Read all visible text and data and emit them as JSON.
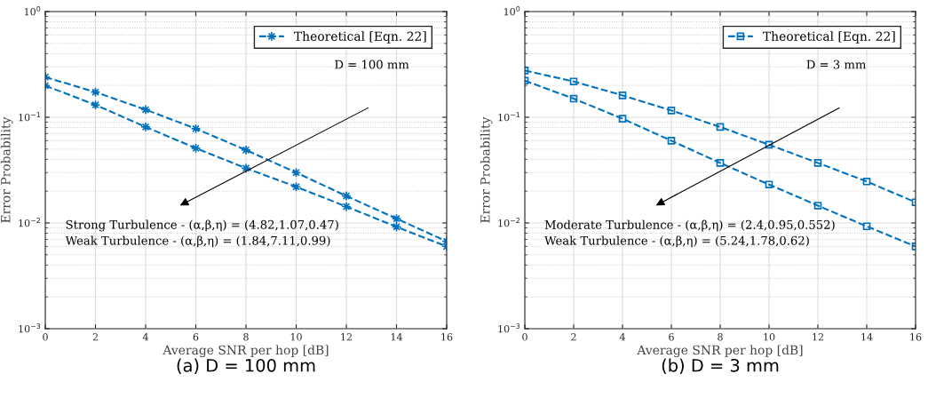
{
  "chart_data": [
    {
      "type": "line",
      "xlabel": "Average SNR per hop [dB]",
      "ylabel": "Error Probability",
      "log": "y",
      "grid": true,
      "legend": "top right",
      "marker": "star",
      "line_style": "dashed",
      "x": [
        0,
        2,
        4,
        6,
        8,
        10,
        12,
        14,
        16
      ],
      "xlim": [
        0,
        16
      ],
      "xticks": [
        0,
        2,
        4,
        6,
        8,
        10,
        12,
        14,
        16
      ],
      "ylim": [
        0.001,
        1
      ],
      "yticks": [
        {
          "value": 0.001,
          "label": "10$^{−3}$"
        },
        {
          "value": 0.01,
          "label": "10$^{−2}$"
        },
        {
          "value": 0.1,
          "label": "10$^{−1}$"
        },
        {
          "value": 1,
          "label": "10$^{0}$"
        }
      ],
      "series": [
        {
          "name": "Theoretical [Eqn. 22]",
          "color": "#0072bd",
          "values": [
            0.24,
            0.173,
            0.118,
            0.078,
            0.049,
            0.03,
            0.018,
            0.011,
            0.0067
          ]
        },
        {
          "color": "#0072bd",
          "values": [
            0.199,
            0.131,
            0.081,
            0.051,
            0.033,
            0.022,
            0.0143,
            0.0092,
            0.006
          ]
        }
      ],
      "annotations": [
        "D = 100 mm",
        "Strong Turbulence - (α,β,η) = (4.82,1.07,0.47)",
        "Weak Turbulence - (α,β,η) = (1.84,7.11,0.99)",
        "(a) D = 100 mm"
      ]
    },
    {
      "type": "line",
      "xlabel": "Average SNR per hop [dB]",
      "ylabel": "Error Probability",
      "log": "y",
      "grid": true,
      "legend": "top right",
      "marker": "square",
      "line_style": "dashed",
      "x": [
        0,
        2,
        4,
        6,
        8,
        10,
        12,
        14,
        16
      ],
      "xlim": [
        0,
        16
      ],
      "xticks": [
        0,
        2,
        4,
        6,
        8,
        10,
        12,
        14,
        16
      ],
      "ylim": [
        0.001,
        1
      ],
      "yticks": [
        {
          "value": 0.001,
          "label": "10$^{−3}$"
        },
        {
          "value": 0.01,
          "label": "10$^{−2}$"
        },
        {
          "value": 0.1,
          "label": "10$^{−1}$"
        },
        {
          "value": 1,
          "label": "10$^{0}$"
        }
      ],
      "series": [
        {
          "name": "Theoretical [Eqn. 22]",
          "color": "#0072bd",
          "values": [
            0.277,
            0.218,
            0.161,
            0.116,
            0.081,
            0.055,
            0.037,
            0.0247,
            0.0157
          ]
        },
        {
          "color": "#0072bd",
          "values": [
            0.222,
            0.15,
            0.097,
            0.06,
            0.037,
            0.0231,
            0.0146,
            0.0093,
            0.006
          ]
        }
      ],
      "annotations": [
        "D = 3 mm",
        "Moderate Turbulence - (α,β,η) = (2.4,0.95,0.552)",
        "Weak Turbulence - (α,β,η) = (5.24,1.78,0.62)",
        "(b) D = 3 mm"
      ]
    }
  ]
}
